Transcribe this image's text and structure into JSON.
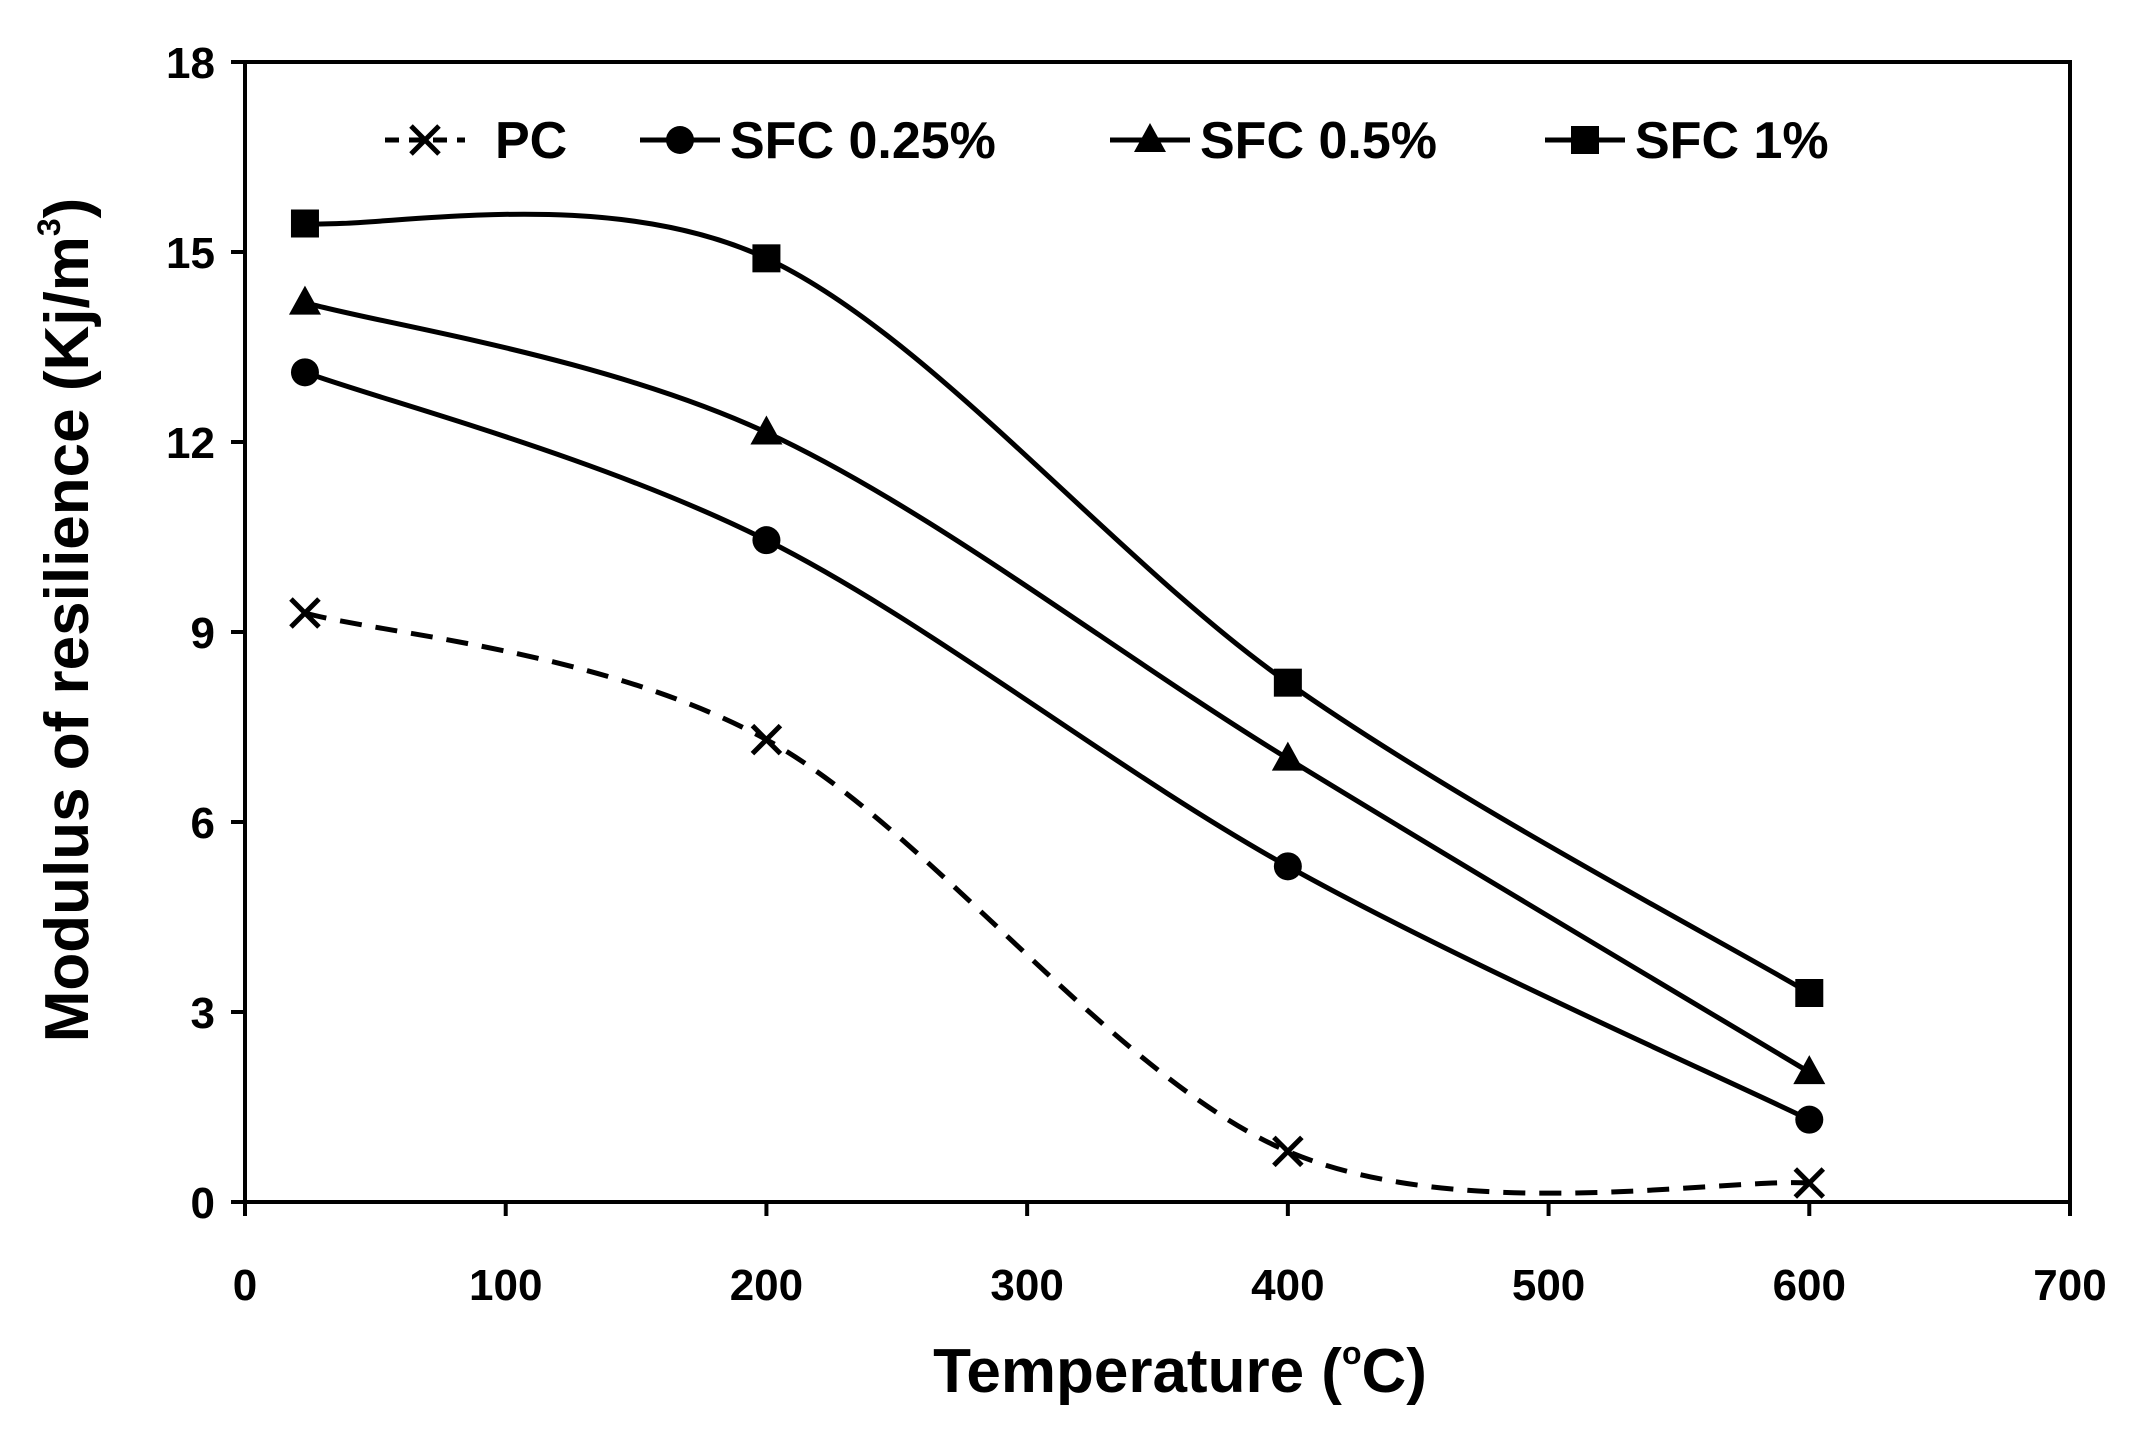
{
  "chart_data": {
    "type": "line",
    "title": "",
    "xlabel": "Temperature (",
    "xlabel_degree": "o",
    "xlabel_suffix": "C)",
    "ylabel": "Modulus of resilience (Kj/m",
    "ylabel_sup": "3",
    "ylabel_suffix": ")",
    "xlim": [
      0,
      700
    ],
    "ylim": [
      0,
      18
    ],
    "xticks": [
      0,
      100,
      200,
      300,
      400,
      500,
      600,
      700
    ],
    "yticks": [
      0,
      3,
      6,
      9,
      12,
      15,
      18
    ],
    "xtick_labels": [
      "0",
      "100",
      "200",
      "300",
      "400",
      "500",
      "600",
      "700"
    ],
    "ytick_labels": [
      "0",
      "3",
      "6",
      "9",
      "12",
      "15",
      "18"
    ],
    "grid": false,
    "legend_position": "top",
    "series": [
      {
        "name": "PC",
        "marker": "x",
        "dashed": true,
        "x": [
          23,
          200,
          400,
          600
        ],
        "values": [
          9.3,
          7.3,
          0.8,
          0.3
        ]
      },
      {
        "name": "SFC 0.25%",
        "marker": "circle",
        "dashed": false,
        "x": [
          23,
          200,
          400,
          600
        ],
        "values": [
          13.1,
          10.45,
          5.3,
          1.3
        ]
      },
      {
        "name": "SFC 0.5%",
        "marker": "triangle",
        "dashed": false,
        "x": [
          23,
          200,
          400,
          600
        ],
        "values": [
          14.2,
          12.15,
          7.0,
          2.05
        ]
      },
      {
        "name": "SFC 1%",
        "marker": "square",
        "dashed": false,
        "x": [
          23,
          200,
          400,
          600
        ],
        "values": [
          15.45,
          14.9,
          8.2,
          3.3
        ]
      }
    ]
  }
}
